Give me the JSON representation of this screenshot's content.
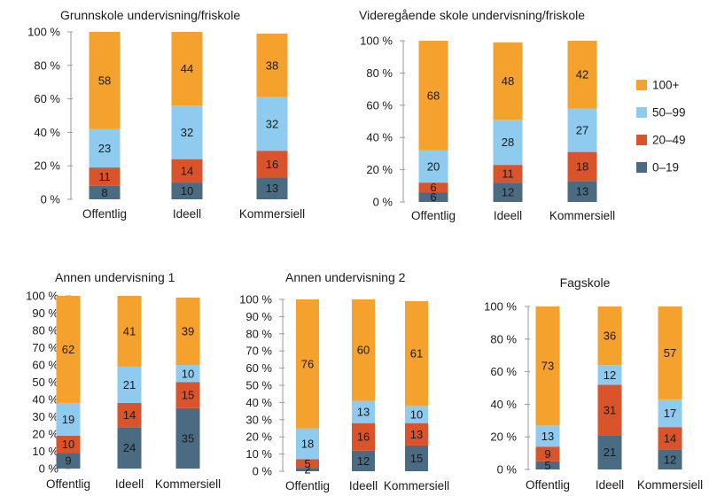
{
  "colors": {
    "0-19": "#4a6b82",
    "20-49": "#d9532b",
    "50-99": "#8ecbee",
    "100+": "#f5a12d",
    "grid": "#9a9a9a",
    "text": "#1a1a1a"
  },
  "legend": [
    {
      "label": "100+",
      "key": "100+"
    },
    {
      "label": "50–99",
      "key": "50-99"
    },
    {
      "label": "20–49",
      "key": "20-49"
    },
    {
      "label": "0–19",
      "key": "0-19"
    }
  ],
  "chart_data": [
    {
      "type": "bar",
      "stacked": true,
      "title": "Grunnskole undervisning/friskole",
      "categories": [
        "Offentlig",
        "Ideell",
        "Kommersiell"
      ],
      "yticks": [
        "0 %",
        "20 %",
        "40 %",
        "60 %",
        "80 %",
        "100 %"
      ],
      "ylim": [
        0,
        100
      ],
      "series": [
        {
          "name": "0–19",
          "key": "0-19",
          "values": [
            8,
            10,
            13
          ]
        },
        {
          "name": "20–49",
          "key": "20-49",
          "values": [
            11,
            14,
            16
          ]
        },
        {
          "name": "50–99",
          "key": "50-99",
          "values": [
            23,
            32,
            32
          ]
        },
        {
          "name": "100+",
          "key": "100+",
          "values": [
            58,
            44,
            38
          ]
        }
      ]
    },
    {
      "type": "bar",
      "stacked": true,
      "title": "Videregående skole undervisning/friskole",
      "categories": [
        "Offentlig",
        "Ideell",
        "Kommersiell"
      ],
      "yticks": [
        "0 %",
        "20 %",
        "40 %",
        "60 %",
        "80 %",
        "100 %"
      ],
      "ylim": [
        0,
        100
      ],
      "series": [
        {
          "name": "0–19",
          "key": "0-19",
          "values": [
            6,
            12,
            13
          ]
        },
        {
          "name": "20–49",
          "key": "20-49",
          "values": [
            6,
            11,
            18
          ]
        },
        {
          "name": "50–99",
          "key": "50-99",
          "values": [
            20,
            28,
            27
          ]
        },
        {
          "name": "100+",
          "key": "100+",
          "values": [
            68,
            48,
            42
          ]
        }
      ]
    },
    {
      "type": "bar",
      "stacked": true,
      "title": "Annen undervisning 1",
      "categories": [
        "Offentlig",
        "Ideell",
        "Kommersiell"
      ],
      "yticks": [
        "0 %",
        "10 %",
        "20 %",
        "30 %",
        "40 %",
        "50 %",
        "60 %",
        "70 %",
        "80 %",
        "90 %",
        "100 %"
      ],
      "ylim": [
        0,
        100
      ],
      "series": [
        {
          "name": "0–19",
          "key": "0-19",
          "values": [
            9,
            24,
            35
          ]
        },
        {
          "name": "20–49",
          "key": "20-49",
          "values": [
            10,
            14,
            15
          ]
        },
        {
          "name": "50–99",
          "key": "50-99",
          "values": [
            19,
            21,
            10
          ]
        },
        {
          "name": "100+",
          "key": "100+",
          "values": [
            62,
            41,
            39
          ]
        }
      ]
    },
    {
      "type": "bar",
      "stacked": true,
      "title": "Annen undervisning 2",
      "categories": [
        "Offentlig",
        "Ideell",
        "Kommersiell"
      ],
      "yticks": [
        "0 %",
        "10 %",
        "20 %",
        "30 %",
        "40 %",
        "50 %",
        "60 %",
        "70 %",
        "80 %",
        "90 %",
        "100 %"
      ],
      "ylim": [
        0,
        100
      ],
      "series": [
        {
          "name": "0–19",
          "key": "0-19",
          "values": [
            2,
            12,
            15
          ]
        },
        {
          "name": "20–49",
          "key": "20-49",
          "values": [
            5,
            16,
            13
          ]
        },
        {
          "name": "50–99",
          "key": "50-99",
          "values": [
            18,
            13,
            10
          ]
        },
        {
          "name": "100+",
          "key": "100+",
          "values": [
            76,
            60,
            61
          ]
        }
      ]
    },
    {
      "type": "bar",
      "stacked": true,
      "title": "Fagskole",
      "categories": [
        "Offentlig",
        "Ideell",
        "Kommersiell"
      ],
      "yticks": [
        "0 %",
        "20 %",
        "40 %",
        "60 %",
        "80 %",
        "100 %"
      ],
      "ylim": [
        0,
        100
      ],
      "series": [
        {
          "name": "0–19",
          "key": "0-19",
          "values": [
            5,
            21,
            12
          ]
        },
        {
          "name": "20–49",
          "key": "20-49",
          "values": [
            9,
            31,
            14
          ]
        },
        {
          "name": "50–99",
          "key": "50-99",
          "values": [
            13,
            12,
            17
          ]
        },
        {
          "name": "100+",
          "key": "100+",
          "values": [
            73,
            36,
            57
          ]
        }
      ]
    }
  ]
}
